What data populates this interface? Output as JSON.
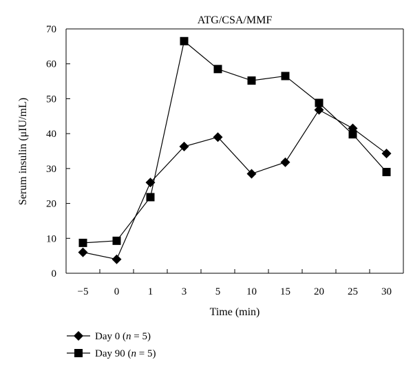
{
  "chart_data": {
    "type": "line",
    "title": "ATG/CSA/MMF",
    "xlabel": "Time (min)",
    "ylabel": "Serum insulin (μIU/mL)",
    "categories": [
      "-5",
      "0",
      "1",
      "3",
      "5",
      "10",
      "15",
      "20",
      "25",
      "30"
    ],
    "tick_labels": [
      "−5",
      "0",
      "1",
      "3",
      "5",
      "10",
      "15",
      "20",
      "25",
      "30"
    ],
    "ylim": [
      0,
      70
    ],
    "yticks": [
      0,
      10,
      20,
      30,
      40,
      50,
      60,
      70
    ],
    "grid": false,
    "legend_position": "bottom-left",
    "series": [
      {
        "name": "Day 0 (n = 5)",
        "label_prefix": "Day 0 (",
        "label_var": "n",
        "label_suffix": " = 5)",
        "marker": "diamond",
        "values": [
          6,
          4,
          26,
          36.3,
          39,
          28.5,
          31.8,
          46.8,
          41.5,
          34.3
        ]
      },
      {
        "name": "Day 90 (n = 5)",
        "label_prefix": "Day 90 (",
        "label_var": "n",
        "label_suffix": " = 5)",
        "marker": "square",
        "values": [
          8.7,
          9.3,
          21.8,
          66.5,
          58.5,
          55.2,
          56.5,
          48.8,
          39.8,
          29
        ]
      }
    ]
  }
}
